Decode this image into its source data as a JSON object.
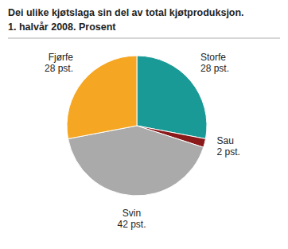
{
  "chart_data": {
    "type": "pie",
    "title": "Dei ulike kjøtslaga sin del av total kjøtproduksjon.",
    "subtitle": "1. halvår 2008. Prosent",
    "categories": [
      "Storfe",
      "Sau",
      "Svin",
      "Fjørfe"
    ],
    "values": [
      28,
      2,
      42,
      28
    ],
    "value_labels": [
      "28 pst.",
      "2 pst.",
      "42 pst.",
      "28 pst."
    ],
    "colors": [
      "#1a9a96",
      "#8b1a1a",
      "#aaaaaa",
      "#f5a623"
    ],
    "data_labels": true
  }
}
